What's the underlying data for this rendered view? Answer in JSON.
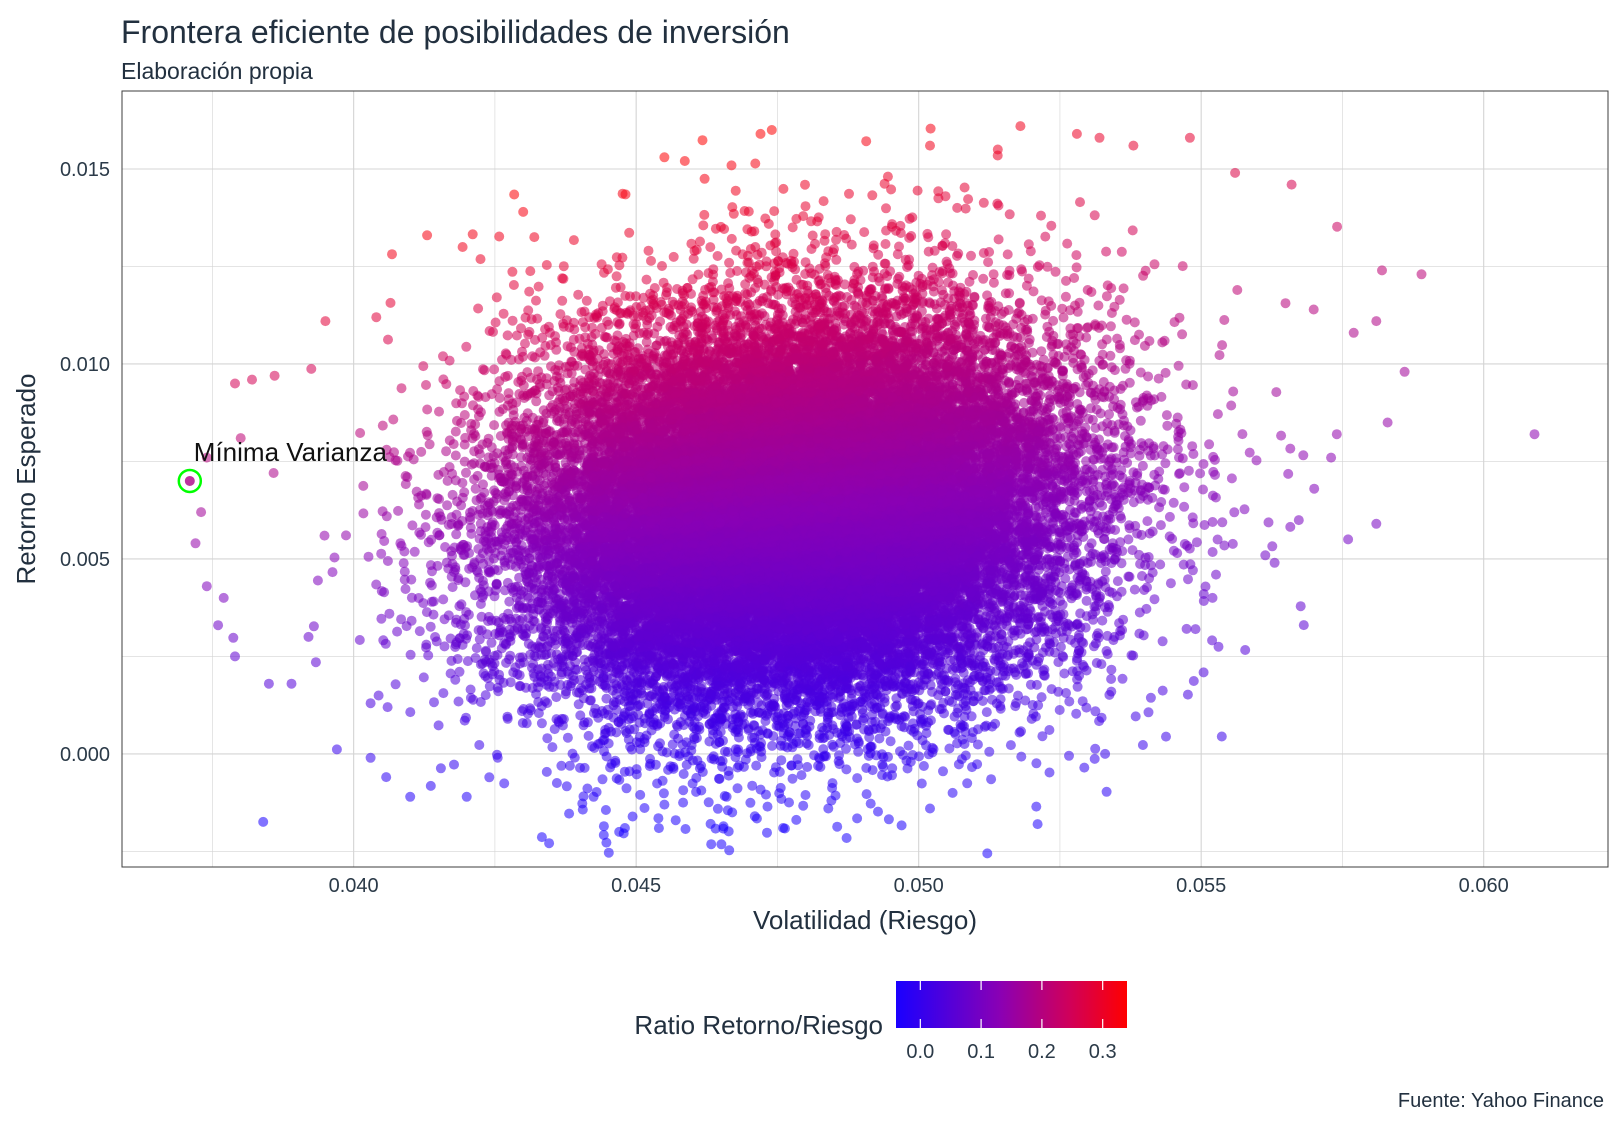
{
  "title": "Frontera eficiente de posibilidades de inversión",
  "subtitle": "Elaboración propia",
  "caption": "Fuente: Yahoo Finance",
  "colors": {
    "low": "#1a00ff",
    "high": "#ff0000",
    "highlight_ring": "#00ff00",
    "grid": "#d4d4d4",
    "panel_border": "#3d3d3d"
  },
  "chart_data": {
    "type": "scatter",
    "xlabel": "Volatilidad (Riesgo)",
    "ylabel": "Retorno Esperado",
    "xlim": [
      0.0359,
      0.0622
    ],
    "ylim": [
      -0.0029,
      0.017
    ],
    "x_ticks": [
      0.04,
      0.045,
      0.05,
      0.055,
      0.06
    ],
    "x_tick_labels": [
      "0.040",
      "0.045",
      "0.050",
      "0.055",
      "0.060"
    ],
    "y_ticks": [
      0,
      0.005,
      0.01,
      0.015
    ],
    "y_tick_labels": [
      "0.000",
      "0.005",
      "0.010",
      "0.015"
    ],
    "grid": true,
    "color_scale": {
      "title": "Ratio Retorno/Riesgo",
      "min": -0.04,
      "max": 0.34,
      "ticks": [
        0,
        0.1,
        0.2,
        0.3
      ],
      "tick_labels": [
        "0.0",
        "0.1",
        "0.2",
        "0.3"
      ],
      "low_color": "#1a00ff",
      "high_color": "#ff0000",
      "placement": "bottom"
    },
    "cloud": {
      "center_x": 0.0478,
      "center_y": 0.0062,
      "x_sd": 0.0024,
      "y_sd": 0.0025,
      "correlation": 0.1,
      "n_points": 30000
    },
    "outliers": [
      [
        0.0609,
        0.0082
      ],
      [
        0.0589,
        0.0123
      ],
      [
        0.0582,
        0.0124
      ],
      [
        0.0586,
        0.0098
      ],
      [
        0.0581,
        0.0111
      ],
      [
        0.0583,
        0.0085
      ],
      [
        0.0581,
        0.0059
      ],
      [
        0.0577,
        0.0108
      ],
      [
        0.0576,
        0.0055
      ],
      [
        0.0574,
        0.0082
      ],
      [
        0.0573,
        0.0076
      ],
      [
        0.057,
        0.0068
      ],
      [
        0.0566,
        0.0146
      ],
      [
        0.0563,
        0.0049
      ],
      [
        0.0548,
        0.0158
      ],
      [
        0.0556,
        0.0149
      ],
      [
        0.0549,
        0.0032
      ],
      [
        0.0552,
        0.004
      ],
      [
        0.0538,
        0.0156
      ],
      [
        0.0518,
        0.0161
      ],
      [
        0.0514,
        0.0155
      ],
      [
        0.0528,
        0.0159
      ],
      [
        0.0532,
        0.0158
      ],
      [
        0.0502,
        0.0156
      ],
      [
        0.0474,
        0.016
      ],
      [
        0.0472,
        0.0159
      ],
      [
        0.0455,
        0.0153
      ],
      [
        0.043,
        0.0139
      ],
      [
        0.0413,
        0.0133
      ],
      [
        0.0404,
        0.0112
      ],
      [
        0.0395,
        0.0111
      ],
      [
        0.0386,
        0.0097
      ],
      [
        0.0382,
        0.0096
      ],
      [
        0.0379,
        0.0095
      ],
      [
        0.038,
        0.0081
      ],
      [
        0.0374,
        0.0076
      ],
      [
        0.0373,
        0.0062
      ],
      [
        0.0372,
        0.0054
      ],
      [
        0.0374,
        0.0043
      ],
      [
        0.0377,
        0.004
      ],
      [
        0.0376,
        0.0033
      ],
      [
        0.0379,
        0.0025
      ],
      [
        0.0385,
        0.0018
      ],
      [
        0.0389,
        0.0018
      ],
      [
        0.0392,
        0.003
      ],
      [
        0.0403,
        0.0013
      ],
      [
        0.0406,
        0.0012
      ],
      [
        0.0403,
        -0.0001
      ],
      [
        0.041,
        -0.0011
      ],
      [
        0.042,
        -0.0011
      ],
      [
        0.0424,
        -0.0006
      ],
      [
        0.0447,
        -0.002
      ],
      [
        0.0448,
        -0.0019
      ],
      [
        0.0455,
        -0.0013
      ],
      [
        0.0457,
        -0.0017
      ],
      [
        0.0467,
        -0.0015
      ],
      [
        0.0471,
        -0.0016
      ],
      [
        0.0476,
        -0.0019
      ],
      [
        0.0502,
        -0.0014
      ],
      [
        0.0506,
        -0.001
      ],
      [
        0.0533,
        -0.0
      ],
      [
        0.0513,
        0.0007
      ],
      [
        0.0484,
        -0.0014
      ],
      [
        0.0466,
        -0.0011
      ]
    ],
    "min_variance": {
      "x": 0.0371,
      "y": 0.007,
      "label": "Mínima Varianza"
    }
  }
}
